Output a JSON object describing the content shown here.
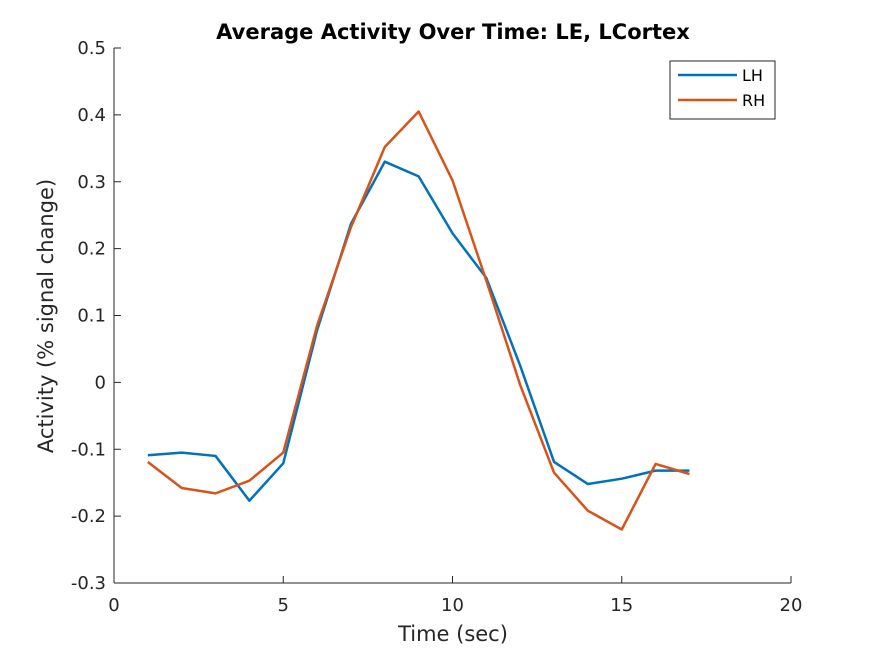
{
  "chart_data": {
    "type": "line",
    "title": "Average Activity Over Time: LE, LCortex",
    "xlabel": "Time (sec)",
    "ylabel": "Activity (% signal change)",
    "xlim": [
      0,
      20
    ],
    "ylim": [
      -0.3,
      0.5
    ],
    "xticks": [
      0,
      5,
      10,
      15,
      20
    ],
    "yticks": [
      -0.3,
      -0.2,
      -0.1,
      0,
      0.1,
      0.2,
      0.3,
      0.4,
      0.5
    ],
    "xtick_labels": [
      "0",
      "5",
      "10",
      "15",
      "20"
    ],
    "ytick_labels": [
      "-0.3",
      "-0.2",
      "-0.1",
      "0",
      "0.1",
      "0.2",
      "0.3",
      "0.4",
      "0.5"
    ],
    "grid": false,
    "legend_position": "top-right",
    "x": [
      1,
      2,
      3,
      4,
      5,
      6,
      7,
      8,
      9,
      10,
      11,
      12,
      13,
      14,
      15,
      16,
      17
    ],
    "series": [
      {
        "name": "LH",
        "color": "#0072BD",
        "values": [
          -0.109,
          -0.105,
          -0.11,
          -0.177,
          -0.121,
          0.078,
          0.237,
          0.33,
          0.308,
          0.223,
          0.156,
          0.025,
          -0.119,
          -0.152,
          -0.144,
          -0.132,
          -0.132
        ]
      },
      {
        "name": "RH",
        "color": "#D95319",
        "values": [
          -0.119,
          -0.158,
          -0.166,
          -0.147,
          -0.105,
          0.085,
          0.232,
          0.352,
          0.405,
          0.302,
          0.152,
          -0.004,
          -0.135,
          -0.192,
          -0.22,
          -0.122,
          -0.137
        ]
      }
    ]
  }
}
